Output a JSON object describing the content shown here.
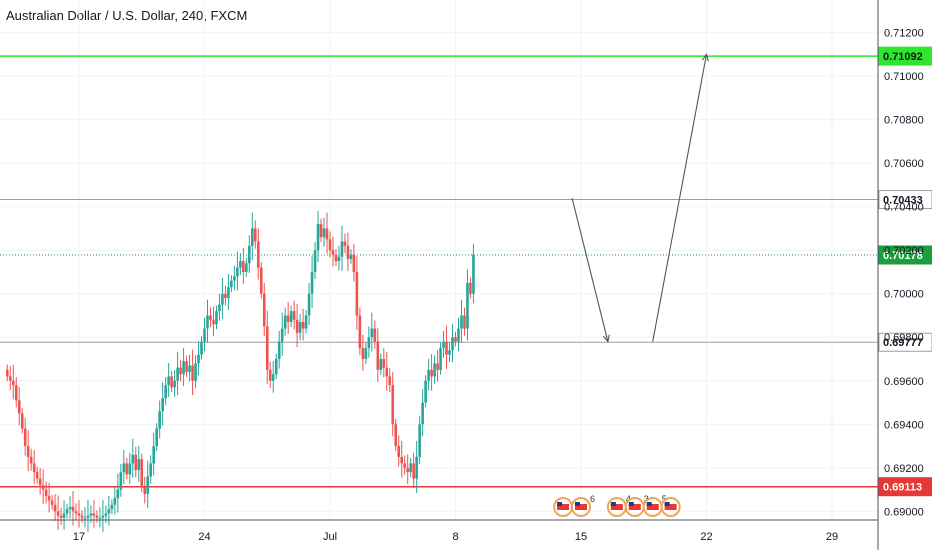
{
  "chart_title": "Australian Dollar / U.S. Dollar, 240, FXCM",
  "colors": {
    "up": "#26a69a",
    "down": "#ef5350",
    "grid": "#f0f3fa",
    "resistance": "#2ee62e",
    "support": "#e53935",
    "gray_line": "#9e9e9e",
    "last_price": "#1b9e3e"
  },
  "chart_data": {
    "type": "candlestick",
    "ylim": [
      0.6896,
      0.7135
    ],
    "y_ticks": [
      "0.71200",
      "0.71000",
      "0.70800",
      "0.70600",
      "0.70400",
      "0.70200",
      "0.70000",
      "0.69800",
      "0.69600",
      "0.69400",
      "0.69200",
      "0.69000"
    ],
    "x_ticks": [
      "17",
      "24",
      "Jul",
      "8",
      "15",
      "22",
      "29"
    ],
    "grid": true,
    "levels": [
      {
        "label": "0.71092",
        "value": 0.71092,
        "style": "resistance"
      },
      {
        "label": "0.70433",
        "value": 0.70433,
        "style": "gray"
      },
      {
        "label": "0.70178",
        "value": 0.70178,
        "style": "last_price"
      },
      {
        "label": "0.69777",
        "value": 0.69777,
        "style": "gray"
      },
      {
        "label": "0.69113",
        "value": 0.69113,
        "style": "support"
      }
    ],
    "projection_path": [
      {
        "x": "Jul 14 12:00",
        "y": 0.7044
      },
      {
        "x": "Jul 16 12:00",
        "y": 0.6978
      },
      {
        "x": "Jul 19 00:00",
        "y": 0.6978
      },
      {
        "x": "Jul 22 00:00",
        "y": 0.711
      }
    ],
    "candles_start": "Jun 13",
    "candle_interval": "4h",
    "closes": [
      0.6962,
      0.696,
      0.6958,
      0.6951,
      0.6945,
      0.6938,
      0.693,
      0.6925,
      0.6922,
      0.6918,
      0.6915,
      0.6912,
      0.691,
      0.6907,
      0.6905,
      0.6903,
      0.69,
      0.6898,
      0.6897,
      0.6899,
      0.6901,
      0.6902,
      0.69,
      0.6899,
      0.6898,
      0.6897,
      0.6897,
      0.6898,
      0.6899,
      0.6898,
      0.6897,
      0.6897,
      0.6898,
      0.6899,
      0.6901,
      0.6903,
      0.6906,
      0.691,
      0.6918,
      0.6922,
      0.6917,
      0.6922,
      0.6926,
      0.6919,
      0.6924,
      0.6911,
      0.6908,
      0.6916,
      0.6922,
      0.693,
      0.6938,
      0.6946,
      0.6952,
      0.6958,
      0.6962,
      0.6957,
      0.696,
      0.6966,
      0.6963,
      0.6969,
      0.6964,
      0.6967,
      0.696,
      0.6968,
      0.6972,
      0.6978,
      0.6984,
      0.699,
      0.6988,
      0.6986,
      0.6992,
      0.6995,
      0.7,
      0.6998,
      0.7003,
      0.7006,
      0.7008,
      0.7012,
      0.7015,
      0.701,
      0.7014,
      0.7022,
      0.703,
      0.7024,
      0.7012,
      0.7,
      0.6985,
      0.6965,
      0.696,
      0.6963,
      0.697,
      0.6978,
      0.6984,
      0.699,
      0.6987,
      0.6992,
      0.6988,
      0.6982,
      0.6987,
      0.6984,
      0.699,
      0.7,
      0.701,
      0.702,
      0.7032,
      0.7026,
      0.703,
      0.7025,
      0.702,
      0.7018,
      0.7015,
      0.7017,
      0.7024,
      0.7022,
      0.7016,
      0.7018,
      0.701,
      0.699,
      0.6975,
      0.697,
      0.6975,
      0.698,
      0.6984,
      0.6978,
      0.6965,
      0.697,
      0.6966,
      0.6962,
      0.6958,
      0.694,
      0.693,
      0.6925,
      0.6922,
      0.692,
      0.6918,
      0.6922,
      0.6915,
      0.6925,
      0.694,
      0.695,
      0.696,
      0.6965,
      0.6962,
      0.6968,
      0.6965,
      0.6975,
      0.6978,
      0.6972,
      0.6974,
      0.698,
      0.6978,
      0.6984,
      0.699,
      0.6984,
      0.7005,
      0.7,
      0.7018
    ]
  },
  "economic_events": [
    {
      "x": "Jul 14",
      "label": ""
    },
    {
      "x": "Jul 15",
      "label": "6"
    },
    {
      "x": "Jul 17",
      "label": "4"
    },
    {
      "x": "Jul 18",
      "label": "3"
    },
    {
      "x": "Jul 19",
      "label": "5"
    },
    {
      "x": "Jul 20",
      "label": ""
    }
  ]
}
